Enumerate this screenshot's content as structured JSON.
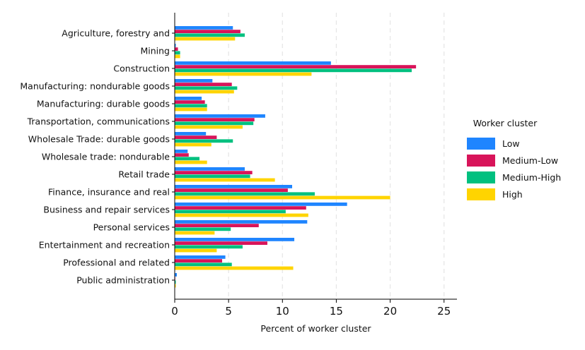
{
  "chart_data": {
    "type": "bar",
    "orientation": "horizontal",
    "categories": [
      "Agriculture, forestry and",
      "Mining",
      "Construction",
      "Manufacturing: nondurable goods",
      "Manufacturing: durable goods",
      "Transportation, communications",
      "Wholesale Trade: durable goods",
      "Wholesale trade: nondurable",
      "Retail trade",
      "Finance, insurance and real",
      "Business and repair services",
      "Personal services",
      "Entertainment and recreation",
      "Professional and related",
      "Public administration"
    ],
    "series": [
      {
        "name": "Low",
        "color": "#1f85ff",
        "values": [
          5.4,
          0.1,
          14.5,
          3.5,
          2.5,
          8.4,
          2.9,
          1.2,
          6.5,
          10.9,
          16.0,
          12.3,
          11.1,
          4.7,
          0.2
        ]
      },
      {
        "name": "Medium-Low",
        "color": "#d8145a",
        "values": [
          6.1,
          0.3,
          22.4,
          5.3,
          2.8,
          7.4,
          3.9,
          1.3,
          7.2,
          10.5,
          12.2,
          7.8,
          8.6,
          4.4,
          0.05
        ]
      },
      {
        "name": "Medium-High",
        "color": "#00c07f",
        "values": [
          6.5,
          0.5,
          22.0,
          5.8,
          3.0,
          7.3,
          5.4,
          2.3,
          7.0,
          13.0,
          10.3,
          5.2,
          6.3,
          5.3,
          0.1
        ]
      },
      {
        "name": "High",
        "color": "#ffd400",
        "values": [
          5.6,
          0.5,
          12.7,
          5.5,
          3.0,
          6.3,
          3.4,
          3.0,
          9.3,
          20.0,
          12.4,
          3.7,
          3.9,
          11.0,
          0.1
        ]
      }
    ],
    "xlabel": "Percent of worker cluster",
    "ylabel": "",
    "title": "",
    "xlim": [
      0,
      26.2
    ],
    "xticks": [
      0,
      5,
      10,
      15,
      20,
      25
    ],
    "grid": "vertical-dashed",
    "legend": {
      "title": "Worker cluster",
      "position": "right"
    }
  }
}
